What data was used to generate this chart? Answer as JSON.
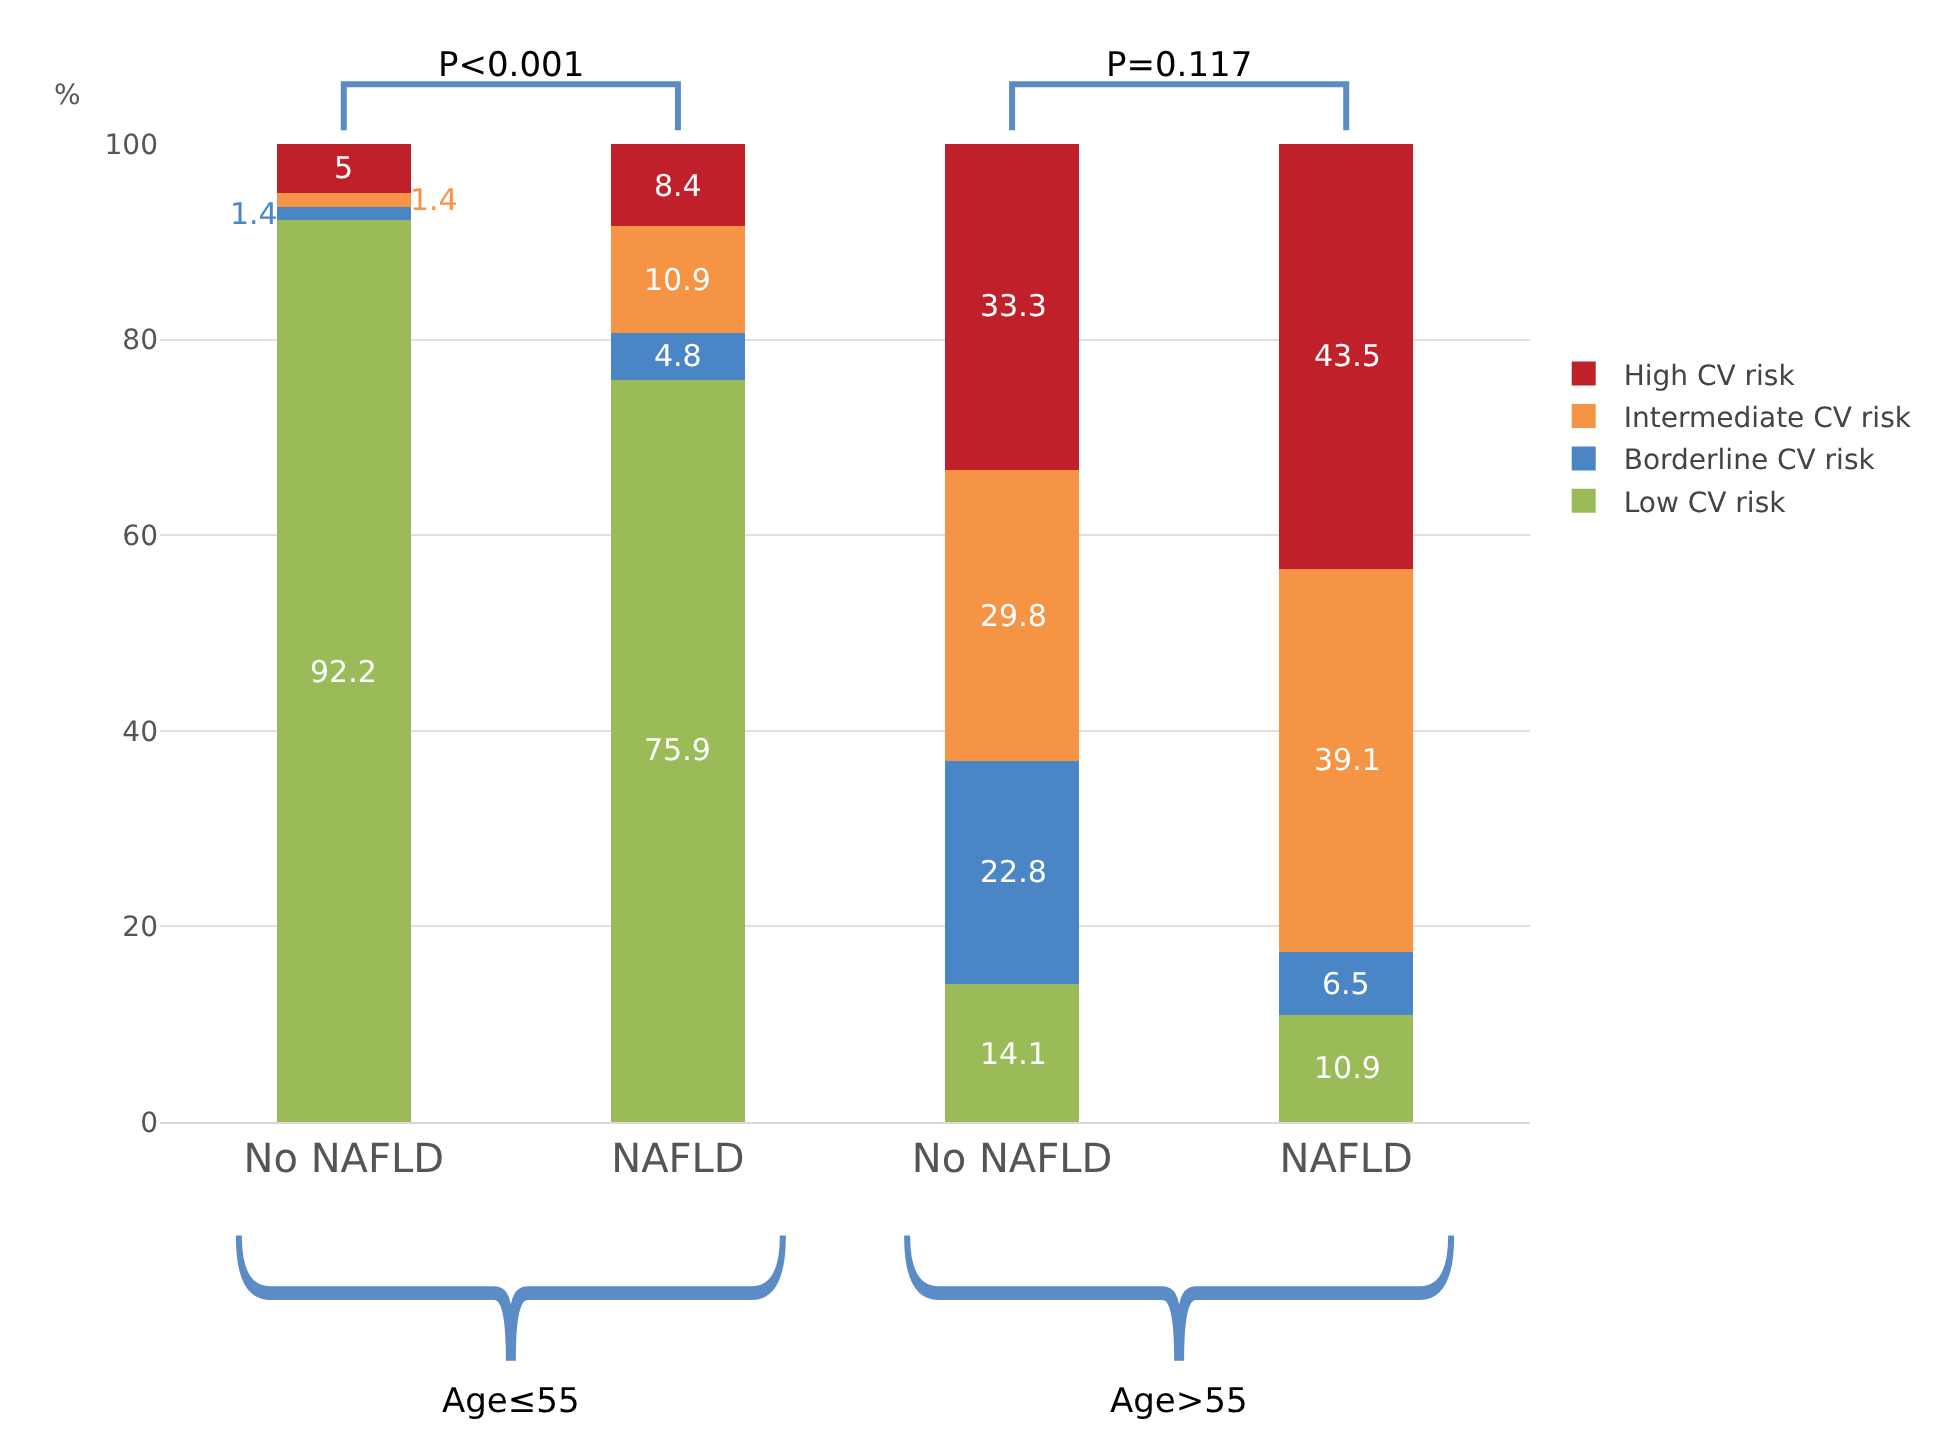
{
  "chart_data": {
    "type": "bar",
    "stacked": true,
    "ylabel": "%",
    "categories": [
      "No NAFLD",
      "NAFLD",
      "No NAFLD",
      "NAFLD"
    ],
    "series": [
      {
        "name": "Low CV risk",
        "color": "#9bbb59",
        "values": [
          92.2,
          75.9,
          14.1,
          10.9
        ]
      },
      {
        "name": "Borderline CV risk",
        "color": "#4a86c5",
        "values": [
          1.4,
          4.8,
          22.8,
          6.5
        ]
      },
      {
        "name": "Intermediate CV risk",
        "color": "#f59445",
        "values": [
          1.4,
          10.9,
          29.8,
          39.1
        ]
      },
      {
        "name": "High CV risk",
        "color": "#c0202a",
        "values": [
          5,
          8.4,
          33.3,
          43.5
        ]
      }
    ],
    "ylim": [
      0,
      100
    ],
    "yticks": [
      0,
      20,
      40,
      60,
      80,
      100
    ],
    "grid": "y",
    "legend": "right",
    "data_labels": true,
    "annotations": [
      "P<0.001",
      "P=0.117",
      "Age≤55",
      "Age>55"
    ]
  }
}
